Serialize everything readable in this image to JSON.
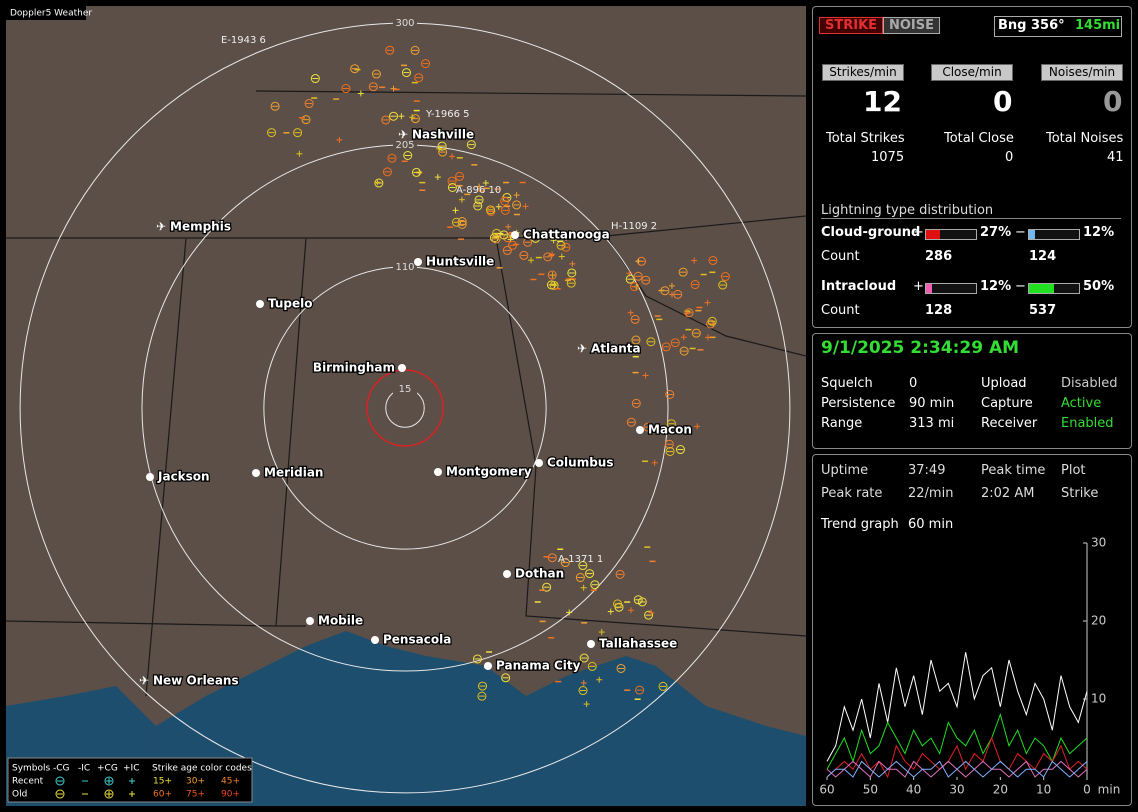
{
  "app_title": "Doppler5 Weather",
  "map": {
    "range_rings": [
      300,
      205,
      110,
      15
    ],
    "cities": [
      "Nashville",
      "Memphis",
      "Chattanooga",
      "Huntsville",
      "Tupelo",
      "Birmingham",
      "Atlanta",
      "Macon",
      "Jackson",
      "Meridian",
      "Montgomery",
      "Columbus",
      "Dothan",
      "Mobile",
      "Pensacola",
      "Panama City",
      "Tallahassee",
      "New Orleans"
    ],
    "storm_labels": [
      "E-1943 6",
      "Y-1966 5",
      "A-896 10",
      "H-1109 2",
      "A-1371 1"
    ]
  },
  "legend": {
    "symbols_title": "Symbols",
    "symbols": [
      "-CG",
      "-IC",
      "+CG",
      "+IC"
    ],
    "age_title": "Strike age color codes",
    "rows": [
      "Recent",
      "Old"
    ],
    "ages": [
      "15+",
      "30+",
      "45+",
      "60+",
      "75+",
      "90+"
    ]
  },
  "status": {
    "strike_button": "STRIKE",
    "noise_button": "NOISE",
    "bearing": "Bng 356°",
    "distance": "145mi",
    "rate_labels": [
      "Strikes/min",
      "Close/min",
      "Noises/min"
    ],
    "rates": [
      12,
      0,
      0
    ],
    "total_labels": [
      "Total Strikes",
      "Total Close",
      "Total Noises"
    ],
    "totals": [
      1075,
      0,
      41
    ],
    "distribution_title": "Lightning type distribution",
    "cloud_ground": {
      "label": "Cloud-ground",
      "plus": "+",
      "minus": "−",
      "pos_pct": {
        "value": 27,
        "label": "27%"
      },
      "neg_pct": {
        "value": 12,
        "label": "12%"
      },
      "count_label": "Count",
      "pos_count": 286,
      "neg_count": 124
    },
    "intracloud": {
      "label": "Intracloud",
      "plus": "+",
      "minus": "−",
      "pos_pct": {
        "value": 12,
        "label": "12%"
      },
      "neg_pct": {
        "value": 50,
        "label": "50%"
      },
      "count_label": "Count",
      "pos_count": 128,
      "neg_count": 537
    }
  },
  "settings": {
    "datetime": "9/1/2025 2:34:29 AM",
    "rows": [
      [
        "Squelch",
        "0",
        "Upload",
        "Disabled"
      ],
      [
        "Persistence",
        "90 min",
        "Capture",
        "Active"
      ],
      [
        "Range",
        "313 mi",
        "Receiver",
        "Enabled"
      ]
    ]
  },
  "stats": {
    "rows": [
      [
        "Uptime",
        "37:49",
        "Peak time",
        "Plot"
      ],
      [
        "Peak rate",
        "22/min",
        "2:02 AM",
        "Strike"
      ]
    ],
    "trend_label": "Trend graph",
    "trend_value": "60 min"
  },
  "trend_graph": {
    "type": "line",
    "x_unit": "min",
    "xlim": [
      60,
      0
    ],
    "ylim": [
      0,
      30
    ],
    "xticks": [
      60,
      50,
      40,
      30,
      20,
      10,
      0
    ],
    "yticks": [
      10,
      20,
      30
    ],
    "x": [
      60,
      58,
      56,
      54,
      52,
      50,
      48,
      46,
      44,
      42,
      40,
      38,
      36,
      34,
      32,
      30,
      28,
      26,
      24,
      22,
      20,
      18,
      16,
      14,
      12,
      10,
      8,
      6,
      4,
      2,
      0
    ],
    "series": [
      {
        "color": "#ffffff",
        "values": [
          2,
          4,
          9,
          6,
          10,
          5,
          12,
          7,
          14,
          9,
          13,
          8,
          15,
          11,
          12,
          9,
          16,
          10,
          13,
          14,
          9,
          15,
          11,
          8,
          12,
          10,
          6,
          13,
          9,
          7,
          11
        ]
      },
      {
        "color": "#22dd22",
        "values": [
          1,
          3,
          5,
          2,
          6,
          3,
          4,
          7,
          5,
          3,
          6,
          4,
          5,
          3,
          7,
          5,
          4,
          6,
          3,
          5,
          8,
          4,
          6,
          3,
          5,
          4,
          2,
          5,
          3,
          4,
          5
        ]
      },
      {
        "color": "#dd2222",
        "values": [
          0,
          1,
          2,
          1,
          3,
          1,
          2,
          0,
          4,
          2,
          1,
          3,
          2,
          1,
          2,
          4,
          1,
          3,
          2,
          5,
          2,
          1,
          3,
          2,
          1,
          3,
          2,
          4,
          1,
          2,
          1
        ]
      },
      {
        "color": "#e070c0",
        "values": [
          1,
          0,
          1,
          2,
          1,
          0,
          2,
          1,
          1,
          0,
          2,
          1,
          0,
          1,
          2,
          1,
          0,
          1,
          2,
          1,
          1,
          0,
          1,
          2,
          0,
          1,
          1,
          2,
          1,
          0,
          1
        ]
      },
      {
        "color": "#80b0ff",
        "values": [
          0,
          1,
          1,
          0,
          2,
          1,
          0,
          1,
          2,
          1,
          0,
          1,
          1,
          2,
          0,
          1,
          2,
          1,
          0,
          1,
          2,
          1,
          0,
          1,
          1,
          0,
          2,
          1,
          0,
          1,
          2
        ]
      }
    ]
  }
}
